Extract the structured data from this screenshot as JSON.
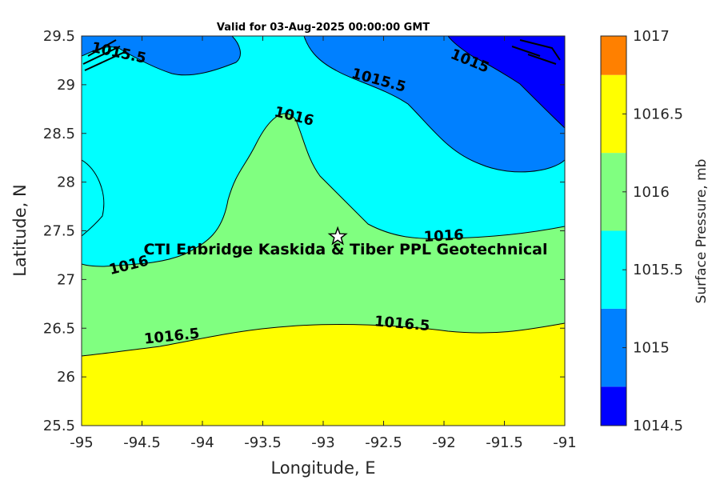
{
  "chart_data": {
    "type": "contour-map",
    "title": "Valid for 03-Aug-2025 00:00:00 GMT",
    "xlabel": "Longitude, E",
    "ylabel": "Latitude, N",
    "xlim": [
      -95,
      -91
    ],
    "ylim": [
      25.5,
      29.5
    ],
    "x_ticks": [
      "-95",
      "-94.5",
      "-94",
      "-93.5",
      "-93",
      "-92.5",
      "-92",
      "-91.5",
      "-91"
    ],
    "y_ticks": [
      "29.5",
      "29",
      "28.5",
      "28",
      "27.5",
      "27",
      "26.5",
      "26",
      "25.5"
    ],
    "colorbar": {
      "title": "Surface Pressure, mb",
      "range": [
        1014.5,
        1017
      ],
      "ticks": [
        "1017",
        "1016.5",
        "1016",
        "1015.5",
        "1015",
        "1014.5"
      ],
      "levels": [
        {
          "from": 1014.5,
          "to": 1014.75,
          "color": "#0000ff"
        },
        {
          "from": 1014.75,
          "to": 1015.25,
          "color": "#0080ff"
        },
        {
          "from": 1015.25,
          "to": 1015.75,
          "color": "#00ffff"
        },
        {
          "from": 1015.75,
          "to": 1016.25,
          "color": "#80ff80"
        },
        {
          "from": 1016.25,
          "to": 1016.75,
          "color": "#ffff00"
        },
        {
          "from": 1016.75,
          "to": 1017.0,
          "color": "#ff8000"
        }
      ]
    },
    "contour_labels": [
      {
        "text": "1015.5",
        "lon": -94.7,
        "lat": 29.28
      },
      {
        "text": "1015.5",
        "lon": -92.55,
        "lat": 29.0
      },
      {
        "text": "1015",
        "lon": -91.8,
        "lat": 29.2
      },
      {
        "text": "1016",
        "lon": -93.25,
        "lat": 28.63
      },
      {
        "text": "1016",
        "lon": -92.0,
        "lat": 27.4
      },
      {
        "text": "1016",
        "lon": -94.6,
        "lat": 27.1
      },
      {
        "text": "1016.5",
        "lon": -94.25,
        "lat": 26.37
      },
      {
        "text": "1016.5",
        "lon": -92.35,
        "lat": 26.5
      }
    ],
    "site": {
      "name": "CTI Enbridge  Kaskida & Tiber PPL Geotechnical",
      "lon": -92.88,
      "lat": 27.44
    }
  }
}
